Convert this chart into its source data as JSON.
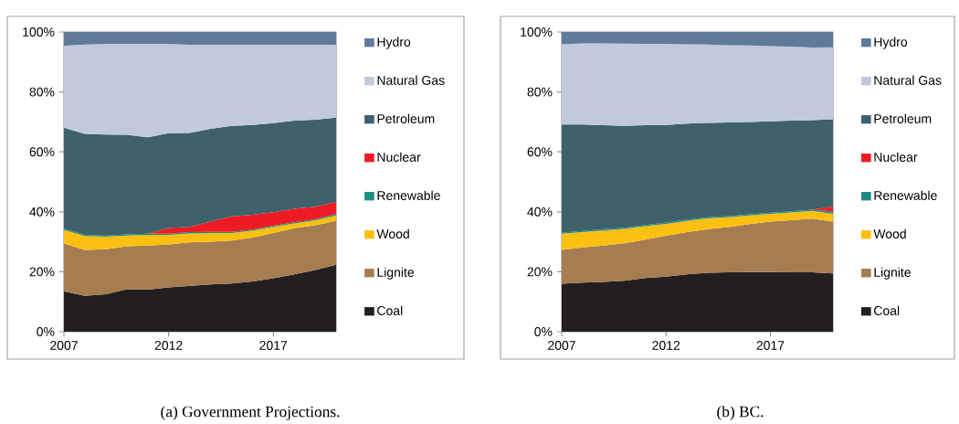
{
  "chart_data": [
    {
      "type": "area",
      "stacked": true,
      "annotations": [
        "(a)  Government Projections."
      ],
      "legend": "right",
      "x": [
        2007,
        2008,
        2009,
        2010,
        2011,
        2012,
        2013,
        2014,
        2015,
        2016,
        2017,
        2018,
        2019,
        2020
      ],
      "xlim": [
        2007,
        2020
      ],
      "xticks": [
        2007,
        2012,
        2017
      ],
      "ylim": [
        0,
        100
      ],
      "yticks": [
        {
          "value": 0,
          "label": "0%"
        },
        {
          "value": 20,
          "label": "20%"
        },
        {
          "value": 40,
          "label": "40%"
        },
        {
          "value": 60,
          "label": "60%"
        },
        {
          "value": 80,
          "label": "80%"
        },
        {
          "value": 100,
          "label": "100%"
        }
      ],
      "series": [
        {
          "name": "Coal",
          "color": "#231f20",
          "values": [
            13.5,
            12,
            12.5,
            14.2,
            14,
            14.8,
            15.3,
            15.8,
            16.1,
            16.8,
            17.8,
            19.1,
            20.6,
            22.3
          ]
        },
        {
          "name": "Lignite",
          "color": "#a57d51",
          "values": [
            15.9,
            15.3,
            15,
            14.3,
            14.7,
            14.3,
            14.5,
            14.2,
            14.3,
            14.6,
            15.1,
            15.4,
            14.9,
            14.7
          ]
        },
        {
          "name": "Wood",
          "color": "#fdc010",
          "values": [
            4.6,
            4.6,
            4.2,
            3.6,
            3.6,
            3.2,
            3,
            2.9,
            2.5,
            2.3,
            2.1,
            1.6,
            1.6,
            1.8
          ]
        },
        {
          "name": "Renewable",
          "color": "#1e8c80",
          "values": [
            0.4,
            0.4,
            0.4,
            0.4,
            0.4,
            0.4,
            0.4,
            0.4,
            0.4,
            0.4,
            0.4,
            0.4,
            0.4,
            0.5
          ]
        },
        {
          "name": "Nuclear",
          "color": "#ed1c24",
          "values": [
            0,
            0,
            0,
            0,
            0,
            1.9,
            1.8,
            3.4,
            5.2,
            4.9,
            4.5,
            4.5,
            4.2,
            4
          ]
        },
        {
          "name": "Petroleum",
          "color": "#3e616b",
          "values": [
            33.7,
            33.7,
            33.7,
            33.2,
            32.2,
            31.6,
            31.3,
            31,
            30.2,
            30,
            29.7,
            29.4,
            29,
            28.1
          ]
        },
        {
          "name": "Natural Gas",
          "color": "#c2c9dc",
          "values": [
            27.3,
            29.8,
            30.2,
            30.3,
            31.1,
            29.8,
            29.4,
            28,
            27,
            26.7,
            26.1,
            25.3,
            25,
            24.3
          ]
        },
        {
          "name": "Hydro",
          "color": "#5f7a9b",
          "values": [
            4.6,
            4.2,
            4,
            4,
            4,
            4,
            4.3,
            4.3,
            4.3,
            4.3,
            4.3,
            4.3,
            4.3,
            4.3
          ]
        }
      ]
    },
    {
      "type": "area",
      "stacked": true,
      "annotations": [
        "(b)  BC."
      ],
      "legend": "right",
      "x": [
        2007,
        2008,
        2009,
        2010,
        2011,
        2012,
        2013,
        2014,
        2015,
        2016,
        2017,
        2018,
        2019,
        2020
      ],
      "xlim": [
        2007,
        2020
      ],
      "xticks": [
        2007,
        2012,
        2017
      ],
      "ylim": [
        0,
        100
      ],
      "yticks": [
        {
          "value": 0,
          "label": "0%"
        },
        {
          "value": 20,
          "label": "20%"
        },
        {
          "value": 40,
          "label": "40%"
        },
        {
          "value": 60,
          "label": "60%"
        },
        {
          "value": 80,
          "label": "80%"
        },
        {
          "value": 100,
          "label": "100%"
        }
      ],
      "series": [
        {
          "name": "Coal",
          "color": "#231f20",
          "values": [
            16,
            16.4,
            16.6,
            17,
            17.9,
            18.4,
            19.1,
            19.7,
            19.8,
            19.9,
            19.9,
            19.8,
            19.8,
            19.4
          ]
        },
        {
          "name": "Lignite",
          "color": "#a57d51",
          "values": [
            11.3,
            11.7,
            12.1,
            12.5,
            12.8,
            13.6,
            14.1,
            14.5,
            15.1,
            16,
            16.8,
            17.4,
            17.9,
            17.3
          ]
        },
        {
          "name": "Wood",
          "color": "#fdc010",
          "values": [
            5.4,
            5.1,
            5.1,
            4.8,
            4.5,
            4,
            3.8,
            3.6,
            3.3,
            2.9,
            2.6,
            2.6,
            2.6,
            2.6
          ]
        },
        {
          "name": "Renewable",
          "color": "#1e8c80",
          "values": [
            0.4,
            0.4,
            0.4,
            0.4,
            0.4,
            0.4,
            0.4,
            0.4,
            0.4,
            0.4,
            0.4,
            0.4,
            0.4,
            0.8
          ]
        },
        {
          "name": "Nuclear",
          "color": "#ed1c24",
          "values": [
            0,
            0,
            0,
            0,
            0,
            0,
            0,
            0,
            0,
            0,
            0,
            0,
            0,
            1.7
          ]
        },
        {
          "name": "Petroleum",
          "color": "#3e616b",
          "values": [
            36,
            35.5,
            34.7,
            34,
            33.3,
            32.6,
            32,
            31.5,
            31.2,
            30.8,
            30.5,
            30.2,
            29.9,
            29.1
          ]
        },
        {
          "name": "Natural Gas",
          "color": "#c2c9dc",
          "values": [
            26.8,
            27.1,
            27.3,
            27.4,
            27.1,
            27,
            26.5,
            26.1,
            25.8,
            25.5,
            25.1,
            24.7,
            24.2,
            24
          ]
        },
        {
          "name": "Hydro",
          "color": "#5f7a9b",
          "values": [
            4.1,
            3.8,
            3.8,
            3.9,
            4,
            4,
            4.1,
            4.2,
            4.4,
            4.5,
            4.7,
            4.9,
            5.2,
            5.1
          ]
        }
      ]
    }
  ]
}
